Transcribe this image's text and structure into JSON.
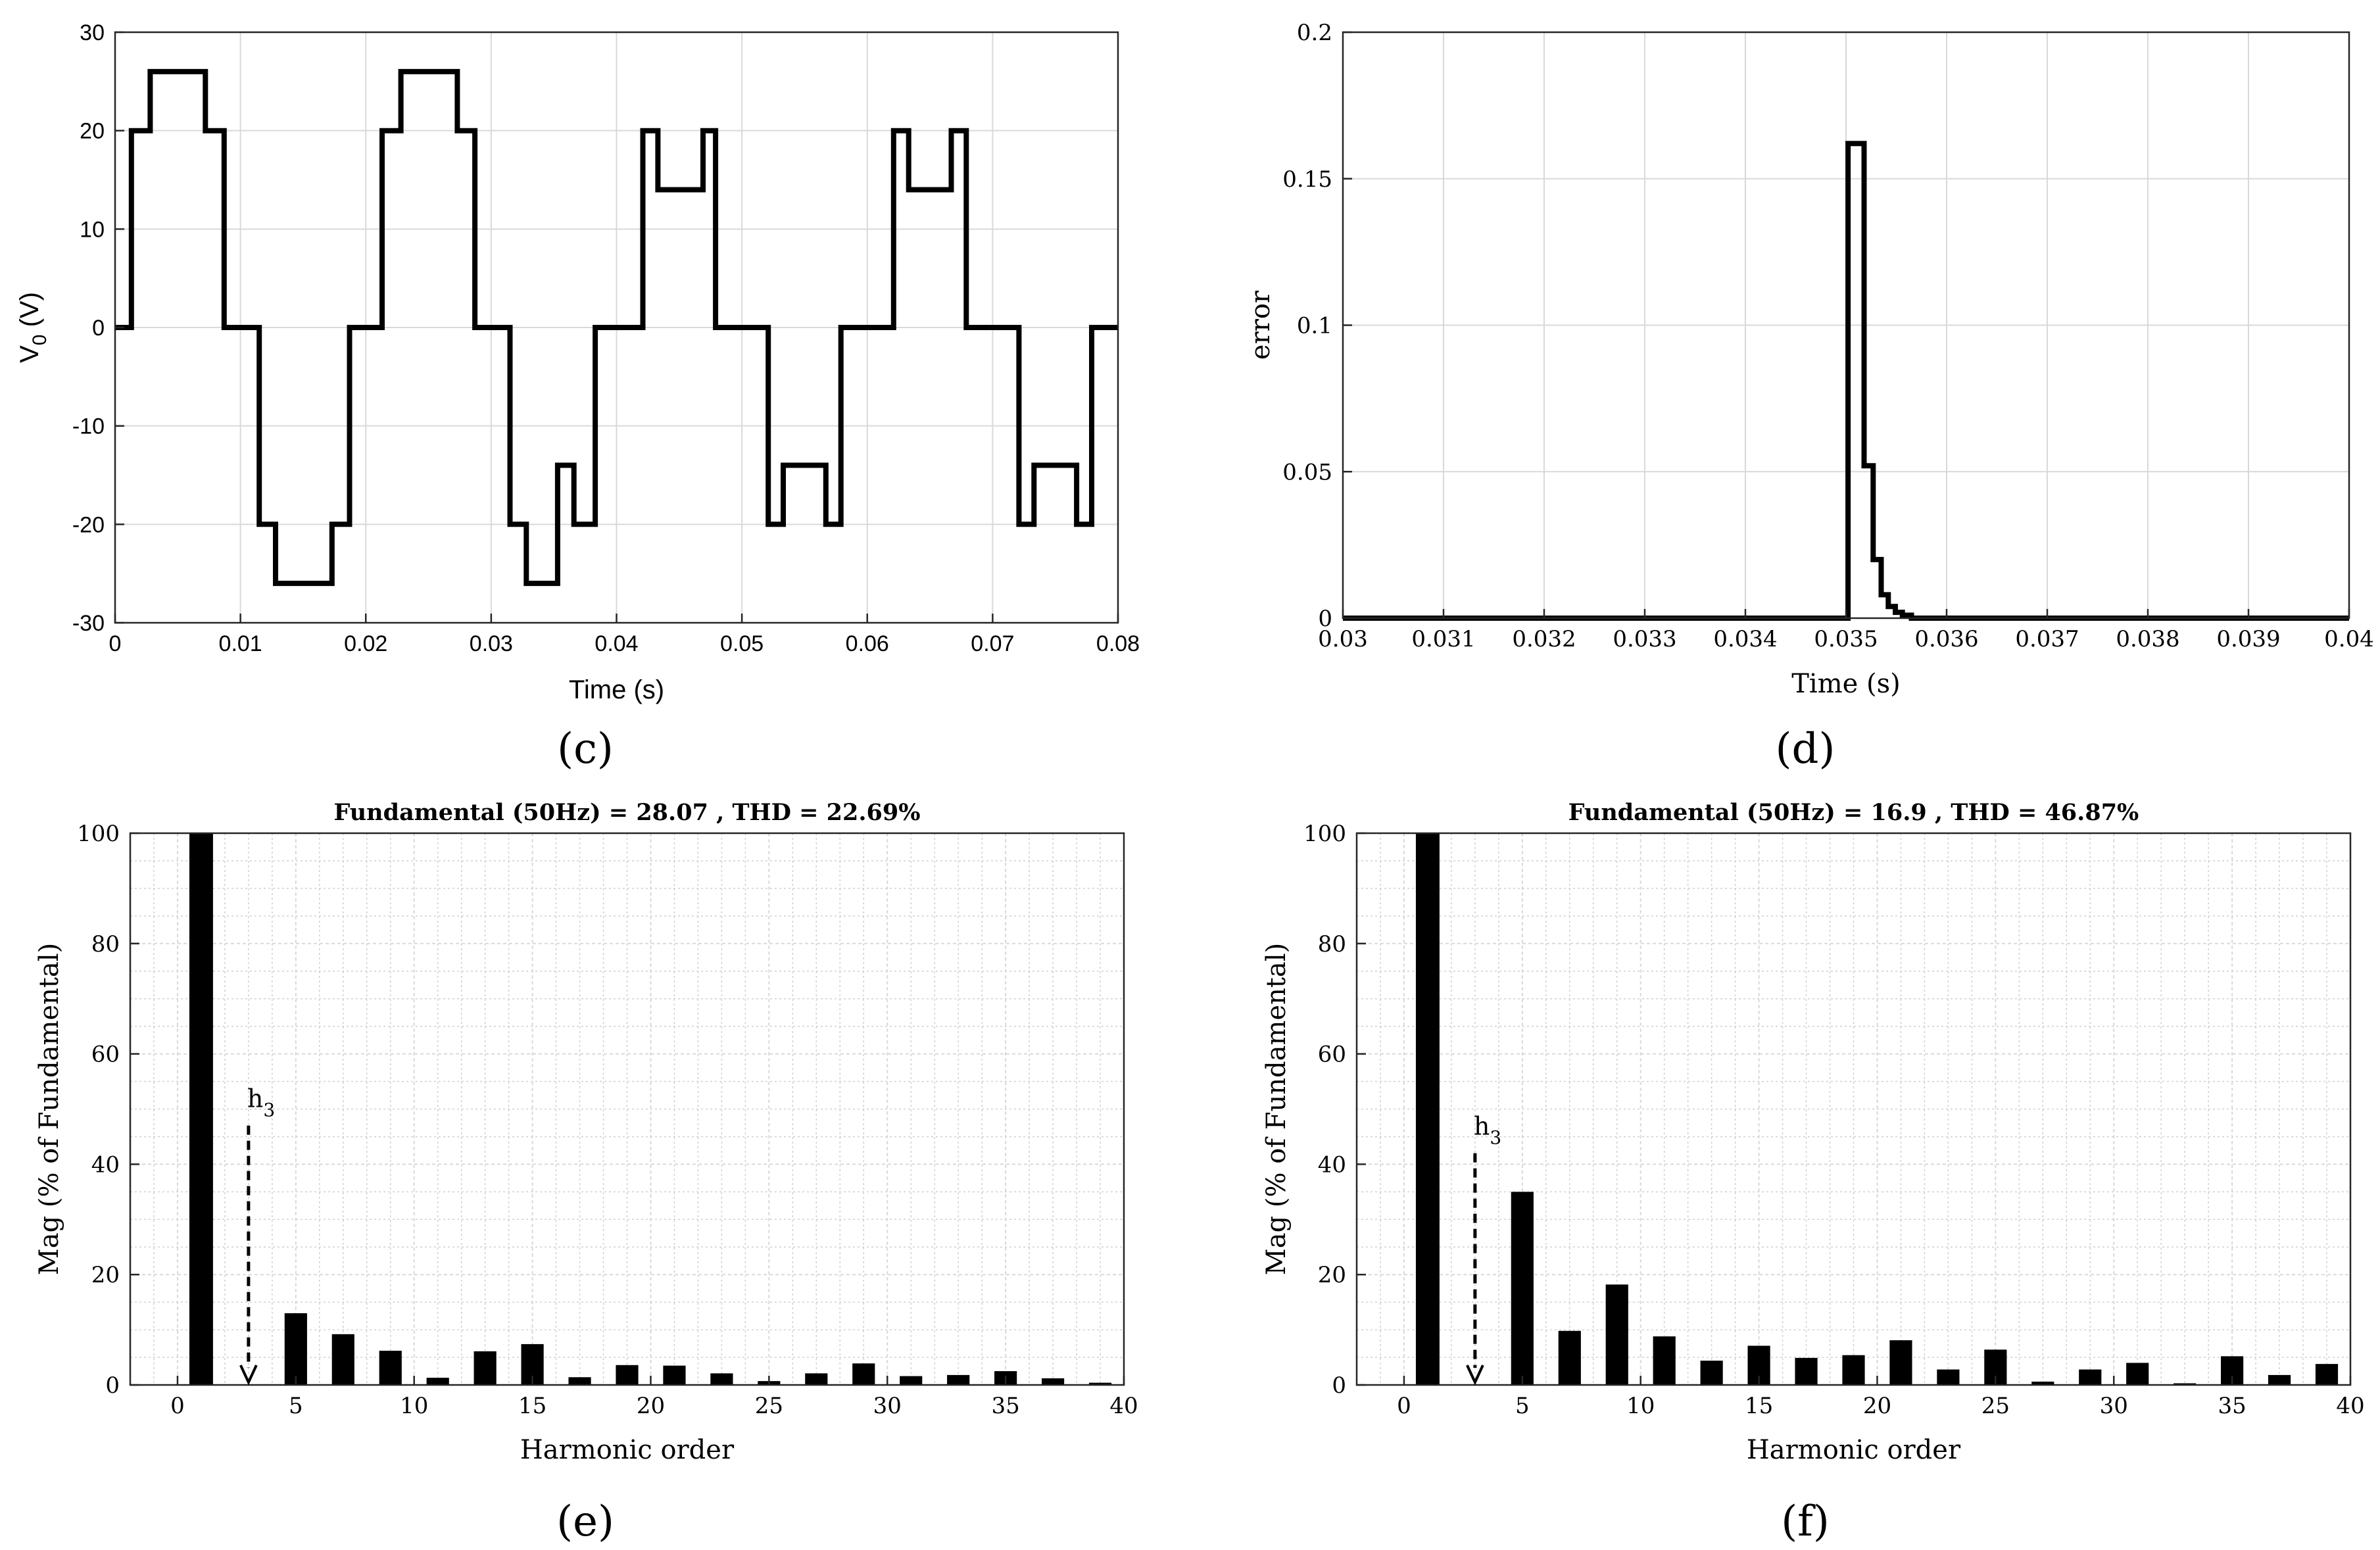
{
  "chart_data": [
    {
      "id": "c",
      "type": "line",
      "caption": "(c)",
      "title": "",
      "xlabel": "Time (s)",
      "ylabel_main": "V",
      "ylabel_sub": "0",
      "ylabel_unit": " (V)",
      "xlim": [
        0,
        0.08
      ],
      "ylim": [
        -30,
        30
      ],
      "xticks": [
        0,
        0.01,
        0.02,
        0.03,
        0.04,
        0.05,
        0.06,
        0.07,
        0.08
      ],
      "xtick_labels": [
        "0",
        "0.01",
        "0.02",
        "0.03",
        "0.04",
        "0.05",
        "0.06",
        "0.07",
        "0.08"
      ],
      "yticks": [
        -30,
        -20,
        -10,
        0,
        10,
        20,
        30
      ],
      "ytick_labels": [
        "-30",
        "-20",
        "-10",
        "0",
        "10",
        "20",
        "30"
      ],
      "grid": true,
      "series": [
        {
          "name": "V0",
          "x": [
            0,
            0.0013,
            0.0013,
            0.0028,
            0.0028,
            0.0072,
            0.0072,
            0.0087,
            0.0087,
            0.0115,
            0.0115,
            0.0128,
            0.0128,
            0.0173,
            0.0173,
            0.0187,
            0.0187,
            0.0213,
            0.0213,
            0.0228,
            0.0228,
            0.0273,
            0.0273,
            0.0287,
            0.0287,
            0.0315,
            0.0315,
            0.0328,
            0.0328,
            0.0353,
            0.0353,
            0.0366,
            0.0366,
            0.0383,
            0.0383,
            0.0421,
            0.0421,
            0.0433,
            0.0433,
            0.0469,
            0.0469,
            0.0479,
            0.0479,
            0.0521,
            0.0521,
            0.0533,
            0.0533,
            0.0567,
            0.0567,
            0.0579,
            0.0579,
            0.0621,
            0.0621,
            0.0633,
            0.0633,
            0.0667,
            0.0667,
            0.0679,
            0.0679,
            0.0721,
            0.0721,
            0.0733,
            0.0733,
            0.0767,
            0.0767,
            0.0779,
            0.0779,
            0.08
          ],
          "y": [
            0,
            0,
            20,
            20,
            26,
            26,
            20,
            20,
            0,
            0,
            -20,
            -20,
            -26,
            -26,
            -20,
            -20,
            0,
            0,
            20,
            20,
            26,
            26,
            20,
            20,
            0,
            0,
            -20,
            -20,
            -26,
            -26,
            -14,
            -14,
            -20,
            -20,
            0,
            0,
            20,
            20,
            14,
            14,
            20,
            20,
            0,
            0,
            -20,
            -20,
            -14,
            -14,
            -20,
            -20,
            0,
            0,
            20,
            20,
            14,
            14,
            20,
            20,
            0,
            0,
            -20,
            -20,
            -14,
            -14,
            -20,
            -20,
            0,
            0
          ]
        }
      ]
    },
    {
      "id": "d",
      "type": "line",
      "caption": "(d)",
      "title": "",
      "xlabel": "Time (s)",
      "ylabel": "error",
      "xlim": [
        0.03,
        0.04
      ],
      "ylim": [
        0,
        0.2
      ],
      "xticks": [
        0.03,
        0.031,
        0.032,
        0.033,
        0.034,
        0.035,
        0.036,
        0.037,
        0.038,
        0.039,
        0.04
      ],
      "xtick_labels": [
        "0.03",
        "0.031",
        "0.032",
        "0.033",
        "0.034",
        "0.035",
        "0.036",
        "0.037",
        "0.038",
        "0.039",
        "0.04"
      ],
      "yticks": [
        0,
        0.05,
        0.1,
        0.15,
        0.2
      ],
      "ytick_labels": [
        "0",
        "0.05",
        "0.1",
        "0.15",
        "0.2"
      ],
      "grid": true,
      "series": [
        {
          "name": "error",
          "x": [
            0.03,
            0.03502,
            0.03502,
            0.03518,
            0.03518,
            0.03527,
            0.03527,
            0.03535,
            0.03535,
            0.03542,
            0.03542,
            0.03549,
            0.03549,
            0.03556,
            0.03556,
            0.03565,
            0.03565,
            0.04
          ],
          "y": [
            0,
            0,
            0.162,
            0.162,
            0.052,
            0.052,
            0.02,
            0.02,
            0.008,
            0.008,
            0.004,
            0.004,
            0.002,
            0.002,
            0.001,
            0.001,
            0,
            0
          ]
        }
      ]
    },
    {
      "id": "e",
      "type": "bar",
      "caption": "(e)",
      "title": "Fundamental (50Hz) = 28.07 , THD = 22.69%",
      "xlabel": "Harmonic order",
      "ylabel": "Mag (% of Fundamental)",
      "xlim": [
        -2,
        40
      ],
      "ylim": [
        0,
        100
      ],
      "xticks": [
        0,
        5,
        10,
        15,
        20,
        25,
        30,
        35,
        40
      ],
      "xtick_labels": [
        "0",
        "5",
        "10",
        "15",
        "20",
        "25",
        "30",
        "35",
        "40"
      ],
      "yticks": [
        0,
        20,
        40,
        60,
        80,
        100
      ],
      "ytick_labels": [
        "0",
        "20",
        "40",
        "60",
        "80",
        "100"
      ],
      "grid": true,
      "minor_grid": true,
      "harmonics": [
        1,
        5,
        7,
        9,
        11,
        13,
        15,
        17,
        19,
        21,
        23,
        25,
        27,
        29,
        31,
        33,
        35,
        37,
        39
      ],
      "values": [
        100,
        13,
        9.2,
        6.2,
        1.3,
        6.1,
        7.4,
        1.4,
        3.6,
        3.5,
        2.1,
        0.7,
        2.1,
        3.9,
        1.6,
        1.8,
        2.5,
        1.2,
        0.4
      ],
      "annotation": {
        "text": "h",
        "sub": "3",
        "x": 3,
        "y_top": 47
      }
    },
    {
      "id": "f",
      "type": "bar",
      "caption": "(f)",
      "title": "Fundamental (50Hz) = 16.9 , THD = 46.87%",
      "xlabel": "Harmonic order",
      "ylabel": "Mag (% of Fundamental)",
      "xlim": [
        -2,
        40
      ],
      "ylim": [
        0,
        100
      ],
      "xticks": [
        0,
        5,
        10,
        15,
        20,
        25,
        30,
        35,
        40
      ],
      "xtick_labels": [
        "0",
        "5",
        "10",
        "15",
        "20",
        "25",
        "30",
        "35",
        "40"
      ],
      "yticks": [
        0,
        20,
        40,
        60,
        80,
        100
      ],
      "ytick_labels": [
        "0",
        "20",
        "40",
        "60",
        "80",
        "100"
      ],
      "grid": true,
      "minor_grid": true,
      "harmonics": [
        1,
        5,
        7,
        9,
        11,
        13,
        15,
        17,
        19,
        21,
        23,
        25,
        27,
        29,
        31,
        33,
        35,
        37,
        39
      ],
      "values": [
        100,
        35,
        9.8,
        18.2,
        8.8,
        4.4,
        7.1,
        4.9,
        5.4,
        8.1,
        2.8,
        6.4,
        0.6,
        2.8,
        4,
        0.3,
        5.2,
        1.8,
        3.8
      ],
      "annotation": {
        "text": "h",
        "sub": "3",
        "x": 3,
        "y_top": 42
      }
    }
  ]
}
